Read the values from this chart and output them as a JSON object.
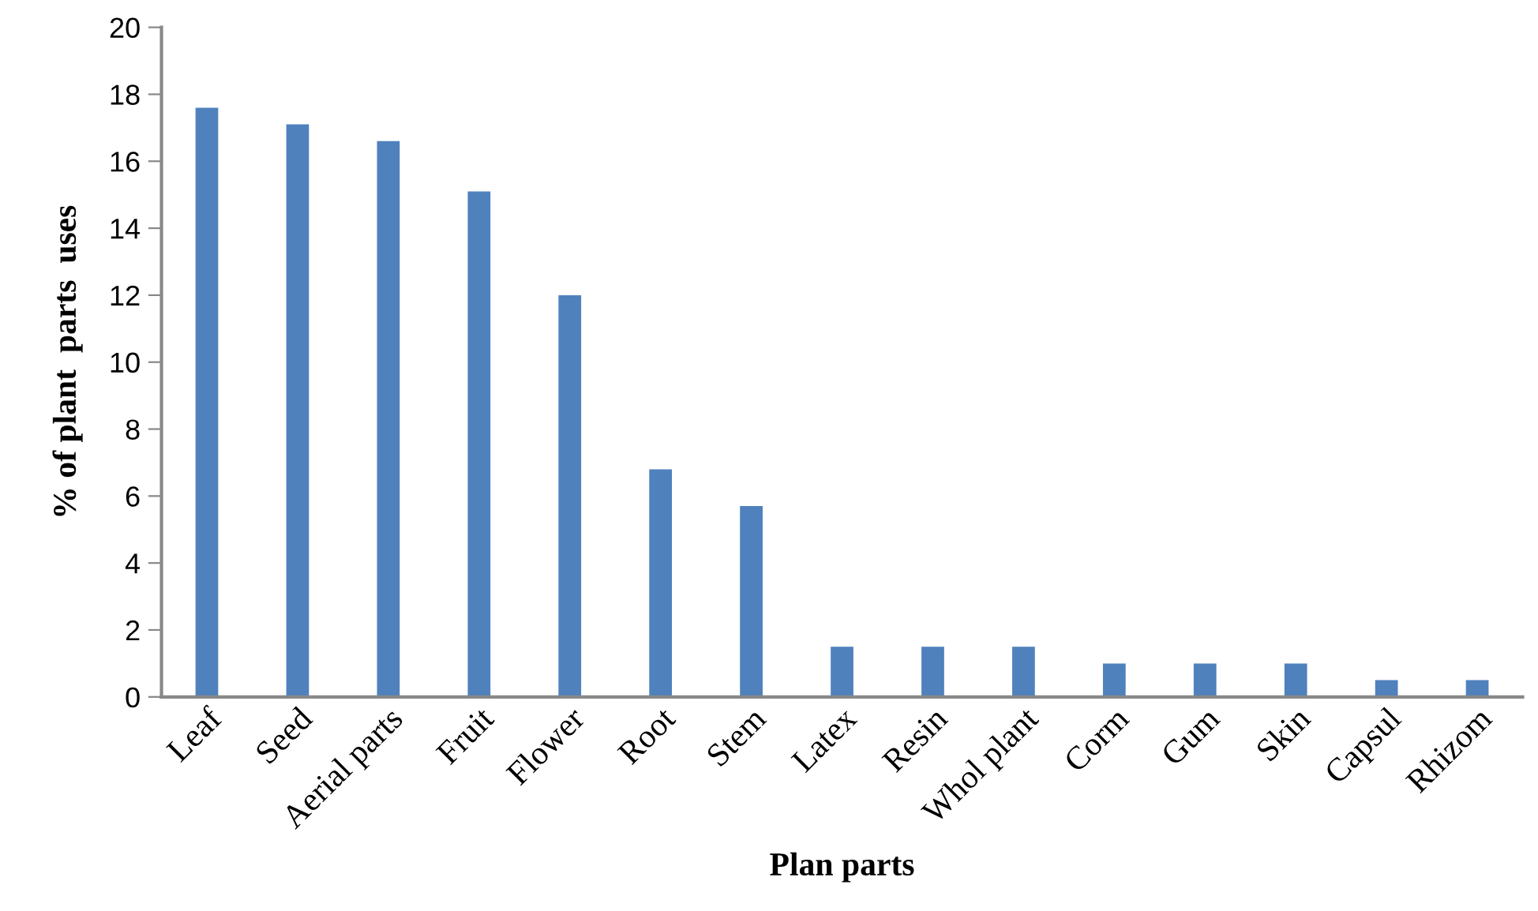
{
  "chart_data": {
    "type": "bar",
    "xlabel": "Plan parts",
    "ylabel": "% of plant  parts  uses",
    "categories": [
      "Leaf",
      "Seed",
      "Aerial parts",
      "Fruit",
      "Flower",
      "Root",
      "Stem",
      "Latex",
      "Resin",
      "Whol plant",
      "Corm",
      "Gum",
      "Skin",
      "Capsul",
      "Rhizom"
    ],
    "values": [
      17.6,
      17.1,
      16.6,
      15.1,
      12.0,
      6.8,
      5.7,
      1.5,
      1.5,
      1.5,
      1.0,
      1.0,
      1.0,
      0.5,
      0.5
    ],
    "color": "#4f81bd",
    "ylim": [
      0,
      20
    ],
    "yticks": [
      0,
      2,
      4,
      6,
      8,
      10,
      12,
      14,
      16,
      18,
      20
    ],
    "grid": false,
    "legend": false
  }
}
